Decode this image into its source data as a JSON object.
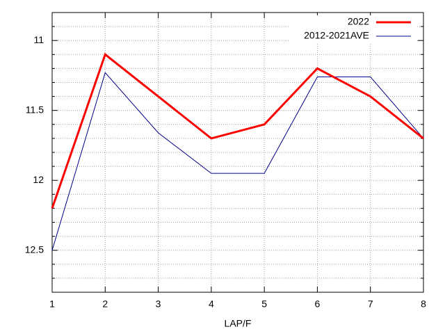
{
  "chart_data": {
    "type": "line",
    "x_label": "LAP/F",
    "x": [
      1,
      2,
      3,
      4,
      5,
      6,
      7,
      8
    ],
    "xlim": [
      1,
      8
    ],
    "xticks": [
      1,
      2,
      3,
      4,
      5,
      6,
      7,
      8
    ],
    "ylim": [
      10.8,
      12.8
    ],
    "y_reversed": true,
    "yticks": [
      11,
      11.5,
      12,
      12.5
    ],
    "y_minor_ticks": [
      10.9,
      11.1,
      11.2,
      11.3,
      11.4,
      11.6,
      11.7,
      11.8,
      11.9,
      12.1,
      12.2,
      12.3,
      12.4,
      12.6,
      12.7
    ],
    "grid": true,
    "legend": "top-right",
    "series": [
      {
        "name": "2022",
        "color": "#ff0000",
        "width": 3,
        "values": [
          12.2,
          11.1,
          11.4,
          11.7,
          11.6,
          11.2,
          11.4,
          11.7
        ]
      },
      {
        "name": "2012-2021AVE",
        "color": "#00008b",
        "width": 1,
        "values": [
          12.5,
          11.23,
          11.66,
          11.95,
          11.95,
          11.26,
          11.26,
          11.7
        ]
      }
    ]
  }
}
